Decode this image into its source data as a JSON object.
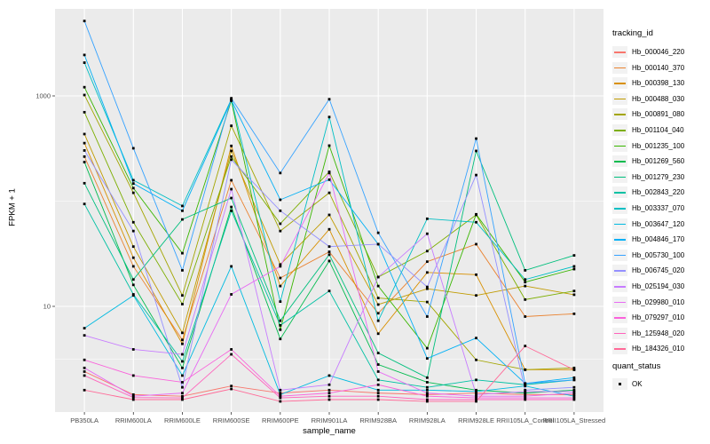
{
  "figure": {
    "panel_bg": "#EBEBEB",
    "grid_color": "#FFFFFF",
    "point_color": "#000000",
    "axis_text_color": "#4D4D4D",
    "tick_color": "#333333"
  },
  "chart_data": {
    "type": "line",
    "xlabel": "sample_name",
    "ylabel": "FPKM + 1",
    "y_scale": "log10",
    "y_ticks": [
      10,
      1000
    ],
    "y_minor_ticks": [
      3.163,
      100
    ],
    "ylim": [
      1,
      6700
    ],
    "grid": true,
    "legend_position": "right",
    "legend_title": "tracking_id",
    "quant_legend": {
      "title": "quant_status",
      "items": [
        {
          "label": "OK"
        }
      ]
    },
    "categories": [
      "PB350LA",
      "RRIM600LA",
      "RRIM600LE",
      "RRIM600SE",
      "RRIM600PE",
      "RRIM901LA",
      "RRIM928BA",
      "RRIM928LA",
      "RRIM928LE",
      "RRII105LA_Control",
      "RRII105LA_Stressed"
    ],
    "series": [
      {
        "name": "Hb_000046_220",
        "color": "#F8766D",
        "values": [
          2.4,
          1.45,
          1.4,
          1.75,
          1.5,
          1.6,
          1.5,
          1.45,
          1.5,
          1.45,
          1.45
        ]
      },
      {
        "name": "Hb_000140_370",
        "color": "#EA8331",
        "values": [
          265,
          24,
          4.8,
          158,
          18.6,
          33,
          8.6,
          26.6,
          39,
          8.0,
          8.5
        ]
      },
      {
        "name": "Hb_000398_130",
        "color": "#D89000",
        "values": [
          356,
          29,
          4.4,
          335,
          15.6,
          54,
          5.5,
          21,
          20,
          2.5,
          2.5
        ]
      },
      {
        "name": "Hb_000488_030",
        "color": "#C09B00",
        "values": [
          434,
          37,
          5.6,
          300,
          25,
          74,
          10.4,
          14.7,
          12.7,
          15.6,
          12.9
        ]
      },
      {
        "name": "Hb_000891_080",
        "color": "#A3A500",
        "values": [
          1020,
          120,
          12.7,
          520,
          52,
          120,
          12,
          11,
          3.1,
          2.5,
          2.6
        ]
      },
      {
        "name": "Hb_001104_040",
        "color": "#7CAE00",
        "values": [
          700,
          63,
          10.5,
          265,
          61,
          190,
          19,
          33.5,
          74,
          11.6,
          14
        ]
      },
      {
        "name": "Hb_001235_100",
        "color": "#39B600",
        "values": [
          1210,
          133,
          32,
          900,
          6.0,
          337,
          15.6,
          4.0,
          75,
          17,
          22.6
        ]
      },
      {
        "name": "Hb_001269_560",
        "color": "#00BB4E",
        "values": [
          235,
          16,
          2.6,
          88,
          4.9,
          27,
          2.8,
          1.9,
          1.6,
          1.5,
          1.6
        ]
      },
      {
        "name": "Hb_001279_230",
        "color": "#00BF7D",
        "values": [
          148,
          18,
          67,
          107,
          7.3,
          31,
          3.6,
          2.1,
          300,
          22,
          30.5
        ]
      },
      {
        "name": "Hb_002843_220",
        "color": "#00C1A3",
        "values": [
          94,
          13,
          3.0,
          81,
          6.6,
          14,
          2.0,
          1.7,
          2.0,
          1.8,
          2.0
        ]
      },
      {
        "name": "Hb_003337_070",
        "color": "#00BFC4",
        "values": [
          2070,
          158,
          90,
          930,
          11.1,
          630,
          7.3,
          68,
          63,
          18,
          24
        ]
      },
      {
        "name": "Hb_003647_120",
        "color": "#00BAE0",
        "values": [
          6.2,
          12.7,
          2.2,
          24,
          1.45,
          2.2,
          1.6,
          1.6,
          1.55,
          1.75,
          1.4
        ]
      },
      {
        "name": "Hb_004846_170",
        "color": "#00B0F6",
        "values": [
          2450,
          147,
          81,
          910,
          103,
          160,
          39,
          3.2,
          5.0,
          1.85,
          2.1
        ]
      },
      {
        "name": "Hb_005730_100",
        "color": "#35A2FF",
        "values": [
          5150,
          318,
          22,
          950,
          185,
          930,
          50,
          8.0,
          393,
          1.85,
          2.0
        ]
      },
      {
        "name": "Hb_006745_020",
        "color": "#9590FF",
        "values": [
          303,
          52,
          1.7,
          248,
          81,
          37,
          39,
          15.3,
          177,
          1.6,
          1.7
        ]
      },
      {
        "name": "Hb_025194_030",
        "color": "#C77CFF",
        "values": [
          5.3,
          3.9,
          3.5,
          130,
          1.6,
          1.8,
          19,
          49,
          1.45,
          1.55,
          1.55
        ]
      },
      {
        "name": "Hb_029980_010",
        "color": "#E76BF3",
        "values": [
          2.6,
          1.4,
          1.5,
          13,
          24,
          185,
          2.4,
          1.5,
          1.4,
          1.4,
          1.5
        ]
      },
      {
        "name": "Hb_079297_010",
        "color": "#FA62DB",
        "values": [
          3.1,
          2.2,
          1.9,
          3.9,
          1.4,
          1.5,
          1.8,
          1.4,
          1.35,
          1.35,
          1.35
        ]
      },
      {
        "name": "Hb_125948_020",
        "color": "#FF62BC",
        "values": [
          2.2,
          1.36,
          1.35,
          3.5,
          1.35,
          1.4,
          1.4,
          1.3,
          1.3,
          1.3,
          1.3
        ]
      },
      {
        "name": "Hb_184326_010",
        "color": "#FF6A98",
        "values": [
          1.6,
          1.3,
          1.3,
          1.64,
          1.25,
          1.3,
          1.3,
          1.25,
          1.25,
          4.2,
          2.5
        ]
      }
    ]
  }
}
